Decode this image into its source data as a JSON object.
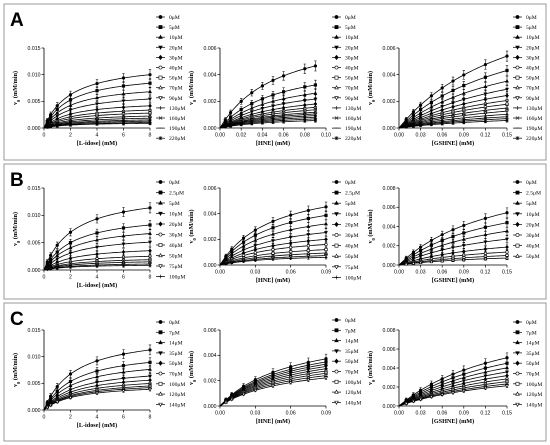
{
  "figure": {
    "panels": [
      {
        "letter": "A",
        "charts": [
          {
            "xlabel": "[L-idose] (mM)",
            "ylabel": "v0 (mM/min)",
            "xlim": [
              0,
              8
            ],
            "xticks": [
              "0",
              "2",
              "4",
              "6",
              "8"
            ],
            "ylim": [
              0,
              0.015
            ],
            "yticks": [
              "0.000",
              "0.005",
              "0.010",
              "0.015"
            ],
            "x": [
              0.25,
              0.5,
              1,
              2,
              4,
              6,
              8
            ],
            "legend": [
              "0μM",
              "5μM",
              "10μM",
              "20μM",
              "30μM",
              "40μM",
              "50μM",
              "70μM",
              "90μM",
              "130μM",
              "160μM",
              "190μM",
              "220μM"
            ],
            "vmax": [
              0.0125,
              0.0105,
              0.0085,
              0.0068,
              0.0052,
              0.0042,
              0.0035,
              0.0028,
              0.0023,
              0.0019,
              0.0016,
              0.0013,
              0.0011
            ],
            "km": 2.0
          },
          {
            "xlabel": "[HNE] (mM)",
            "ylabel": "v0 (mM/min)",
            "xlim": [
              0,
              0.1
            ],
            "xticks": [
              "0.00",
              "0.02",
              "0.04",
              "0.06",
              "0.08",
              "0.10"
            ],
            "ylim": [
              0,
              0.006
            ],
            "yticks": [
              "0.000",
              "0.002",
              "0.004",
              "0.006"
            ],
            "x": [
              0.005,
              0.01,
              0.02,
              0.03,
              0.04,
              0.05,
              0.06,
              0.08,
              0.09
            ],
            "legend": [
              "0μM",
              "5μM",
              "10μM",
              "20μM",
              "30μM",
              "40μM",
              "50μM",
              "70μM",
              "90μM",
              "130μM",
              "160μM",
              "190μM",
              "220μM"
            ],
            "vmax": [
              0.0075,
              0.0052,
              0.0042,
              0.0035,
              0.0029,
              0.0025,
              0.0022,
              0.0019,
              0.0017,
              0.0015,
              0.0013,
              0.0011,
              0.0009
            ],
            "km": 0.055
          },
          {
            "xlabel": "[GSHNE] (mM)",
            "ylabel": "v0 (mM/min)",
            "xlim": [
              0,
              0.15
            ],
            "xticks": [
              "0.00",
              "0.03",
              "0.06",
              "0.09",
              "0.12",
              "0.15"
            ],
            "ylim": [
              0,
              0.006
            ],
            "yticks": [
              "0.000",
              "0.002",
              "0.004",
              "0.006"
            ],
            "x": [
              0.01,
              0.02,
              0.03,
              0.045,
              0.06,
              0.075,
              0.09,
              0.12,
              0.15
            ],
            "legend": [
              "0μM",
              "5μM",
              "10μM",
              "20μM",
              "30μM",
              "40μM",
              "50μM",
              "70μM",
              "90μM",
              "130μM",
              "160μM",
              "190μM",
              "220μM"
            ],
            "vmax": [
              0.0115,
              0.0092,
              0.0075,
              0.0062,
              0.0052,
              0.0044,
              0.0038,
              0.0032,
              0.0027,
              0.0022,
              0.0018,
              0.0015,
              0.0012
            ],
            "km": 0.17
          }
        ]
      },
      {
        "letter": "B",
        "charts": [
          {
            "xlabel": "[L-idose] (mM)",
            "ylabel": "v0 (mM/min)",
            "xlim": [
              0,
              8
            ],
            "xticks": [
              "0",
              "2",
              "4",
              "6",
              "8"
            ],
            "ylim": [
              0,
              0.015
            ],
            "yticks": [
              "0.000",
              "0.005",
              "0.010",
              "0.015"
            ],
            "x": [
              0.25,
              0.5,
              1,
              2,
              4,
              6,
              8
            ],
            "legend": [
              "0μM",
              "2.5μM",
              "5μM",
              "10μM",
              "20μM",
              "30μM",
              "40μM",
              "50μM",
              "75μM",
              "100μM"
            ],
            "vmax": [
              0.0145,
              0.0105,
              0.0085,
              0.0065,
              0.0045,
              0.0032,
              0.0024,
              0.0019,
              0.0014,
              0.0011
            ],
            "km": 2.2
          },
          {
            "xlabel": "[HNE] (mM)",
            "ylabel": "v0 (mM/min)",
            "xlim": [
              0,
              0.09
            ],
            "xticks": [
              "0.00",
              "0.03",
              "0.06",
              "0.09"
            ],
            "ylim": [
              0,
              0.006
            ],
            "yticks": [
              "0.000",
              "0.002",
              "0.004",
              "0.006"
            ],
            "x": [
              0.005,
              0.01,
              0.02,
              0.03,
              0.045,
              0.06,
              0.075,
              0.09
            ],
            "legend": [
              "0μM",
              "2.5μM",
              "5μM",
              "10μM",
              "20μM",
              "30μM",
              "40μM",
              "50μM",
              "75μM",
              "100μM"
            ],
            "vmax": [
              0.0068,
              0.0058,
              0.0048,
              0.0038,
              0.003,
              0.0024,
              0.0018,
              0.0014,
              0.0011,
              0.0009
            ],
            "km": 0.045
          },
          {
            "xlabel": "[GSHNE] (mM)",
            "ylabel": "v0 (mM/min)",
            "xlim": [
              0,
              0.15
            ],
            "xticks": [
              "0.00",
              "0.03",
              "0.06",
              "0.09",
              "0.12",
              "0.15"
            ],
            "ylim": [
              0,
              0.008
            ],
            "yticks": [
              "0.000",
              "0.002",
              "0.004",
              "0.006",
              "0.008"
            ],
            "x": [
              0.01,
              0.02,
              0.03,
              0.045,
              0.06,
              0.075,
              0.09,
              0.12,
              0.15
            ],
            "legend": [
              "0μM",
              "2.5μM",
              "5μM",
              "10μM",
              "20μM",
              "30μM",
              "40μM",
              "50μM"
            ],
            "vmax": [
              0.0105,
              0.0085,
              0.0068,
              0.0052,
              0.0036,
              0.0026,
              0.0019,
              0.0014
            ],
            "km": 0.14
          }
        ]
      },
      {
        "letter": "C",
        "charts": [
          {
            "xlabel": "[L-idose] (mM)",
            "ylabel": "v0 (mM/min)",
            "xlim": [
              0,
              8
            ],
            "xticks": [
              "0",
              "2",
              "4",
              "6",
              "8"
            ],
            "ylim": [
              0,
              0.015
            ],
            "yticks": [
              "0.000",
              "0.005",
              "0.010",
              "0.015"
            ],
            "x": [
              0.25,
              0.5,
              1,
              2,
              4,
              6,
              8
            ],
            "legend": [
              "0μM",
              "7μM",
              "14μM",
              "35μM",
              "50μM",
              "70μM",
              "100μM",
              "120μM",
              "140μM"
            ],
            "vmax": [
              0.0145,
              0.0115,
              0.0098,
              0.0082,
              0.0072,
              0.0064,
              0.0058,
              0.0054,
              0.005
            ],
            "km": 2.3
          },
          {
            "xlabel": "[HNE] (mM)",
            "ylabel": "v0 (mM/min)",
            "xlim": [
              0,
              0.09
            ],
            "xticks": [
              "0.00",
              "0.03",
              "0.06",
              "0.09"
            ],
            "ylim": [
              0,
              0.006
            ],
            "yticks": [
              "0.000",
              "0.002",
              "0.004",
              "0.006"
            ],
            "x": [
              0.005,
              0.01,
              0.02,
              0.03,
              0.045,
              0.06,
              0.075,
              0.09
            ],
            "legend": [
              "0μM",
              "7μM",
              "14μM",
              "35μM",
              "50μM",
              "70μM",
              "100μM",
              "120μM",
              "140μM"
            ],
            "vmax": [
              0.0062,
              0.0058,
              0.0055,
              0.0052,
              0.0049,
              0.0046,
              0.0043,
              0.004,
              0.0037
            ],
            "km": 0.06
          },
          {
            "xlabel": "[GSHNE] (mM)",
            "ylabel": "v0 (mM/min)",
            "xlim": [
              0,
              0.15
            ],
            "xticks": [
              "0.00",
              "0.03",
              "0.06",
              "0.09",
              "0.12",
              "0.15"
            ],
            "ylim": [
              0,
              0.008
            ],
            "yticks": [
              "0.000",
              "0.002",
              "0.004",
              "0.006",
              "0.008"
            ],
            "x": [
              0.01,
              0.02,
              0.03,
              0.045,
              0.06,
              0.075,
              0.09,
              0.12,
              0.15
            ],
            "legend": [
              "0μM",
              "7μM",
              "14μM",
              "35μM",
              "50μM",
              "70μM",
              "100μM",
              "120μM",
              "140μM"
            ],
            "vmax": [
              0.0105,
              0.0093,
              0.0083,
              0.0074,
              0.0066,
              0.0059,
              0.0053,
              0.0048,
              0.0044
            ],
            "km": 0.16
          }
        ]
      }
    ]
  }
}
